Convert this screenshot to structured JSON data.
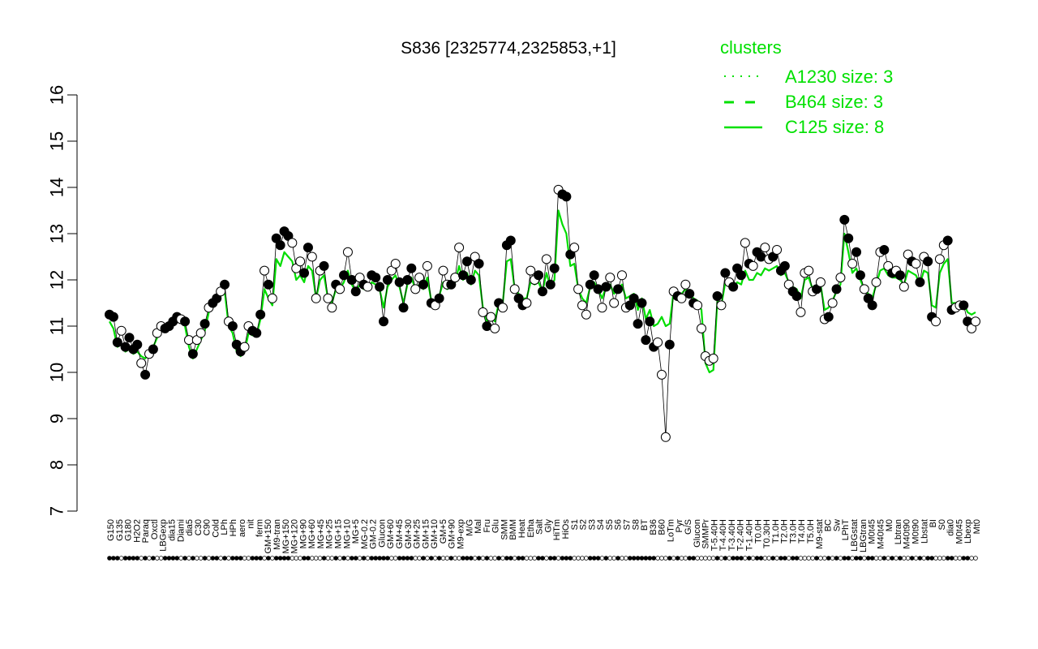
{
  "chart_data": {
    "type": "line",
    "title": "S836 [2325774,2325853,+1]",
    "xlabel": "",
    "ylabel": "",
    "ylim": [
      7,
      16
    ],
    "yticks": [
      7,
      8,
      9,
      10,
      11,
      12,
      13,
      14,
      15,
      16
    ],
    "grid": false,
    "legend_position": "top-right",
    "legend": {
      "title": "clusters",
      "entries": [
        {
          "label": "A1230 size: 3",
          "style": "dotted"
        },
        {
          "label": "B464 size: 3",
          "style": "dashed"
        },
        {
          "label": "C125 size: 8",
          "style": "solid"
        }
      ]
    },
    "colors": {
      "line": "#00dd00",
      "legend": "#00e000",
      "points": "#000000"
    },
    "x_labels": [
      "G150",
      "G135",
      "G180",
      "H2O2",
      "Paraq",
      "Oxctl",
      "LBGexp",
      "dia15",
      "Diami",
      "dia5",
      "C30",
      "C90",
      "Cold",
      "LPh",
      "HPh",
      "aero",
      "nit",
      "ferm",
      "GM+150",
      "M9-tran",
      "MG+150",
      "MG+120",
      "MG+90",
      "MG+60",
      "MG+45",
      "MG+25",
      "MG+15",
      "MG+10",
      "MG+5",
      "MG-0.2",
      "GM-0.2",
      "Glucon",
      "GM+60",
      "GM+45",
      "GM+30",
      "GM+25",
      "GM+15",
      "GM+10",
      "GM+5",
      "GM+90",
      "M9-exp",
      "M/G",
      "Mal",
      "Fru",
      "Glu",
      "SMM",
      "BMM",
      "Heat",
      "Etha",
      "Salt",
      "Gly",
      "HiTm",
      "HiOs",
      "S1",
      "S2",
      "S3",
      "S4",
      "S5",
      "S6",
      "S7",
      "S8",
      "BT",
      "B36",
      "B60",
      "LoTm",
      "Pyr",
      "G/S",
      "Glucon",
      "SMMPr",
      "T-5.40H",
      "T-4.40H",
      "T-3.40H",
      "T-2.40H",
      "T-1.40H",
      "T0.0H",
      "T0.30H",
      "T1.0H",
      "T2.0H",
      "T3.0H",
      "T4.0H",
      "T5.0H",
      "M9-stat",
      "BC",
      "Sw",
      "LPhT",
      "LBGstat",
      "LBGtran",
      "M0t45",
      "M40t45",
      "M0",
      "Lbtran",
      "M40t90",
      "M0t90",
      "Lbstat",
      "BI",
      "S0",
      "dia0",
      "M0t45",
      "Lbexp",
      "Mt0"
    ],
    "series": [
      {
        "type": "points",
        "values": [
          11.25,
          11.2,
          10.65,
          10.9,
          10.55,
          10.75,
          10.5,
          10.6,
          10.2,
          9.95,
          10.4,
          10.5,
          10.85,
          11.0,
          10.95,
          11.0,
          11.1,
          11.2,
          11.15,
          11.1,
          10.7,
          10.4,
          10.7,
          10.85,
          11.05,
          11.4,
          11.5,
          11.6,
          11.75,
          11.9,
          11.1,
          11.0,
          10.6,
          10.45,
          10.55,
          11.0,
          10.9,
          10.85,
          11.25,
          12.2,
          11.9,
          11.6,
          12.9,
          12.75,
          13.05,
          12.95,
          12.8,
          12.25,
          12.4,
          12.15,
          12.7,
          12.5,
          11.6,
          12.2,
          12.3,
          11.6,
          11.4,
          11.9,
          11.8,
          12.1,
          12.6,
          12.0,
          11.75,
          12.05,
          11.9,
          11.85,
          12.1,
          12.05,
          11.85,
          11.1,
          12.0,
          12.2,
          12.35,
          11.95,
          11.4,
          12.0,
          12.25,
          11.8,
          12.05,
          11.9,
          12.3,
          11.5,
          11.45,
          11.6,
          12.2,
          11.9,
          11.9,
          12.05,
          12.7,
          12.1,
          12.4,
          12.0,
          12.5,
          12.35,
          11.3,
          11.0,
          11.2,
          10.95,
          11.5,
          11.4,
          12.75,
          12.85,
          11.8,
          11.6,
          11.45,
          11.5,
          12.2,
          12.0,
          12.1,
          11.75,
          12.45,
          11.9,
          12.25,
          13.95,
          13.85,
          13.8,
          12.55,
          12.7,
          11.8,
          11.45,
          11.25,
          11.9,
          12.1,
          11.8,
          11.4,
          11.85,
          12.05,
          11.5,
          11.8,
          12.1,
          11.4,
          11.45,
          11.6,
          11.05,
          11.5,
          10.7,
          11.1,
          10.55,
          10.65,
          9.95,
          8.6,
          10.6,
          11.75,
          11.65,
          11.6,
          11.9,
          11.7,
          11.5,
          11.45,
          10.95,
          10.35,
          10.25,
          10.3,
          11.65,
          11.45,
          12.15,
          11.95,
          11.85,
          12.25,
          12.1,
          12.8,
          12.35,
          12.3,
          12.6,
          12.5,
          12.7,
          12.45,
          12.5,
          12.65,
          12.2,
          12.3,
          11.9,
          11.75,
          11.65,
          11.3,
          12.15,
          12.2,
          11.75,
          11.8,
          11.95,
          11.15,
          11.2,
          11.5,
          11.8,
          12.05,
          13.3,
          12.9,
          12.35,
          12.6,
          12.1,
          11.8,
          11.6,
          11.45,
          11.95,
          12.6,
          12.65,
          12.3,
          12.15,
          12.2,
          12.1,
          11.85,
          12.55,
          12.4,
          12.35,
          11.95,
          12.5,
          12.4,
          11.2,
          11.1,
          12.45,
          12.75,
          12.85,
          11.35,
          11.4,
          11.45,
          11.45,
          11.1,
          10.95,
          11.1
        ],
        "filled": [
          true,
          true,
          true,
          false,
          true,
          true,
          true,
          true,
          false,
          true,
          false,
          true,
          false,
          false,
          true,
          true,
          true,
          true,
          false,
          true,
          false,
          true,
          false,
          false,
          true,
          false,
          true,
          true,
          false,
          true,
          false,
          true,
          true,
          true,
          false,
          false,
          true,
          true,
          true,
          false,
          true,
          false,
          true,
          true,
          true,
          true,
          false,
          false,
          false,
          true,
          true,
          false,
          false,
          false,
          true,
          false,
          false,
          true,
          false,
          true,
          false,
          true,
          true,
          false,
          true,
          false,
          true,
          true,
          true,
          true,
          true,
          false,
          false,
          true,
          true,
          true,
          true,
          false,
          false,
          true,
          false,
          true,
          false,
          true,
          false,
          false,
          true,
          false,
          false,
          true,
          true,
          true,
          false,
          true,
          false,
          true,
          false,
          false,
          true,
          false,
          true,
          true,
          false,
          true,
          true,
          false,
          false,
          false,
          true,
          true,
          false,
          true,
          true,
          false,
          true,
          true,
          true,
          false,
          false,
          false,
          false,
          true,
          true,
          true,
          false,
          true,
          false,
          false,
          true,
          false,
          false,
          true,
          true,
          true,
          true,
          true,
          true,
          true,
          false,
          false,
          false,
          true,
          false,
          true,
          false,
          false,
          true,
          true,
          false,
          false,
          false,
          false,
          false,
          true,
          false,
          true,
          false,
          true,
          true,
          true,
          false,
          true,
          false,
          true,
          true,
          false,
          false,
          true,
          false,
          true,
          true,
          false,
          true,
          true,
          false,
          false,
          false,
          false,
          true,
          false,
          false,
          true,
          false,
          true,
          false,
          true,
          true,
          false,
          true,
          true,
          false,
          true,
          true,
          false,
          false,
          true,
          false,
          true,
          false,
          true,
          false,
          false,
          true,
          false,
          true,
          false,
          true,
          true,
          false,
          false,
          false,
          true,
          true,
          false,
          false,
          true,
          true
        ]
      },
      {
        "type": "line",
        "name": "C125",
        "style": "solid",
        "values": [
          11.1,
          10.95,
          10.55,
          10.6,
          10.45,
          10.5,
          10.4,
          10.45,
          10.35,
          10.3,
          10.45,
          10.55,
          10.75,
          10.95,
          11.0,
          11.05,
          11.15,
          11.2,
          11.1,
          11.0,
          10.55,
          10.3,
          10.5,
          10.7,
          10.9,
          11.3,
          11.4,
          11.5,
          11.65,
          11.75,
          11.0,
          10.85,
          10.45,
          10.35,
          10.45,
          10.85,
          10.8,
          10.8,
          11.15,
          11.8,
          11.6,
          11.45,
          12.45,
          12.3,
          12.6,
          12.5,
          12.4,
          12.0,
          12.1,
          11.95,
          12.3,
          12.2,
          11.6,
          12.0,
          12.1,
          11.6,
          11.5,
          11.8,
          11.8,
          11.95,
          12.2,
          11.9,
          11.75,
          11.9,
          11.8,
          11.8,
          11.95,
          11.9,
          11.8,
          11.4,
          11.85,
          12.0,
          12.1,
          11.85,
          11.5,
          11.9,
          12.05,
          11.8,
          11.9,
          11.8,
          12.05,
          11.55,
          11.55,
          11.65,
          11.95,
          11.8,
          11.85,
          11.95,
          12.3,
          12.0,
          12.15,
          11.9,
          12.2,
          12.1,
          11.4,
          11.1,
          11.2,
          11.1,
          11.5,
          11.5,
          12.4,
          12.45,
          11.8,
          11.7,
          11.6,
          11.6,
          11.95,
          11.9,
          11.95,
          11.75,
          12.15,
          11.85,
          12.0,
          13.5,
          13.2,
          13.0,
          12.3,
          12.35,
          11.8,
          11.6,
          11.5,
          11.85,
          11.95,
          11.8,
          11.6,
          11.85,
          11.9,
          11.7,
          11.8,
          11.9,
          11.6,
          11.65,
          11.7,
          11.35,
          11.6,
          11.15,
          11.35,
          11.0,
          11.05,
          11.2,
          11.0,
          11.05,
          11.75,
          11.7,
          11.7,
          11.8,
          11.7,
          11.6,
          11.55,
          11.35,
          10.2,
          10.0,
          10.05,
          11.55,
          11.45,
          11.95,
          11.85,
          11.8,
          11.95,
          11.9,
          12.2,
          12.0,
          12.0,
          12.15,
          12.1,
          12.25,
          12.2,
          12.25,
          12.3,
          12.1,
          12.15,
          11.95,
          11.85,
          11.8,
          11.6,
          12.0,
          12.05,
          11.8,
          11.8,
          11.9,
          11.35,
          11.4,
          11.55,
          11.75,
          11.9,
          13.0,
          12.6,
          12.15,
          12.25,
          12.0,
          11.8,
          11.7,
          11.6,
          11.9,
          12.2,
          12.25,
          12.1,
          12.05,
          12.05,
          12.0,
          11.9,
          12.2,
          12.15,
          12.1,
          11.9,
          12.2,
          12.15,
          11.45,
          11.4,
          12.15,
          12.35,
          12.45,
          11.5,
          11.5,
          11.5,
          11.5,
          11.3,
          11.25,
          11.3
        ]
      }
    ]
  }
}
